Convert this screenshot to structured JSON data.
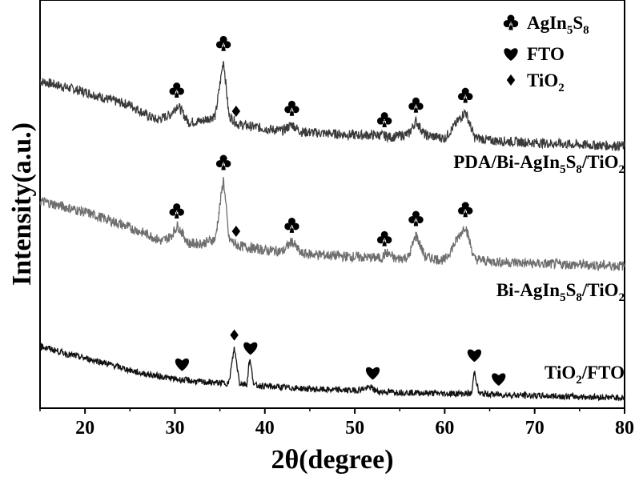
{
  "chart_data": {
    "type": "line",
    "title": "",
    "xlabel": "2θ(degree)",
    "ylabel": "Intensity(a.u.)",
    "xlim": [
      15,
      80
    ],
    "x_ticks": [
      20,
      30,
      40,
      50,
      60,
      70,
      80
    ],
    "y_ticks_shown": false,
    "grid": false,
    "legend": {
      "position": "top-right",
      "entries": [
        {
          "symbol": "club",
          "label": "AgIn5S8",
          "parts": [
            {
              "t": "AgIn"
            },
            {
              "t": "5",
              "sub": true
            },
            {
              "t": "S"
            },
            {
              "t": "8",
              "sub": true
            }
          ]
        },
        {
          "symbol": "heart",
          "label": "FTO",
          "parts": [
            {
              "t": "FTO"
            }
          ]
        },
        {
          "symbol": "diamond",
          "label": "TiO2",
          "parts": [
            {
              "t": "TiO"
            },
            {
              "t": "2",
              "sub": true
            }
          ]
        }
      ]
    },
    "series": [
      {
        "name": "PDA/Bi-AgIn5S8/TiO2",
        "name_parts": [
          {
            "t": "PDA/Bi-AgIn"
          },
          {
            "t": "5",
            "sub": true
          },
          {
            "t": "S"
          },
          {
            "t": "8",
            "sub": true
          },
          {
            "t": "/TiO"
          },
          {
            "t": "2",
            "sub": true
          }
        ],
        "color": "#3a3a3a",
        "x": [
          15,
          17,
          20,
          23,
          25,
          27,
          28,
          29.5,
          30.3,
          31.5,
          33,
          34.5,
          35.4,
          36,
          37,
          40,
          42,
          43,
          44,
          46,
          50,
          53,
          54,
          56,
          56.8,
          57.8,
          60,
          62.3,
          63.3,
          65,
          70,
          75,
          80
        ],
        "y": [
          62,
          58,
          52,
          44,
          40,
          30,
          26,
          31,
          40,
          24,
          25,
          30,
          82,
          30,
          22,
          18,
          16,
          22,
          15,
          14,
          12,
          12,
          10,
          13,
          25,
          12,
          9,
          34,
          10,
          7,
          5,
          3,
          2
        ],
        "peak_markers": [
          {
            "x": 30.2,
            "symbol": "club"
          },
          {
            "x": 35.4,
            "symbol": "club"
          },
          {
            "x": 36.8,
            "symbol": "diamond"
          },
          {
            "x": 43.0,
            "symbol": "club"
          },
          {
            "x": 53.3,
            "symbol": "club"
          },
          {
            "x": 56.8,
            "symbol": "club"
          },
          {
            "x": 62.3,
            "symbol": "club"
          }
        ]
      },
      {
        "name": "Bi-AgIn5S8/TiO2",
        "name_parts": [
          {
            "t": "Bi-AgIn"
          },
          {
            "t": "5",
            "sub": true
          },
          {
            "t": "S"
          },
          {
            "t": "8",
            "sub": true
          },
          {
            "t": "/TiO"
          },
          {
            "t": "2",
            "sub": true
          }
        ],
        "color": "#6e6e6e",
        "x": [
          15,
          17,
          20,
          23,
          25,
          27,
          28.5,
          29.5,
          30.3,
          31.5,
          33,
          34.5,
          35.4,
          36,
          37,
          40,
          42,
          43,
          44,
          46,
          50,
          53,
          53.5,
          54.5,
          56,
          56.8,
          57.8,
          60,
          62.3,
          63.3,
          65,
          70,
          75,
          80
        ],
        "y": [
          60,
          56,
          50,
          42,
          36,
          30,
          24,
          28,
          38,
          22,
          22,
          26,
          80,
          26,
          20,
          16,
          15,
          24,
          13,
          12,
          10,
          9,
          14,
          8,
          10,
          30,
          10,
          7,
          38,
          8,
          6,
          4,
          3,
          2
        ],
        "peak_markers": [
          {
            "x": 30.2,
            "symbol": "club"
          },
          {
            "x": 35.4,
            "symbol": "club"
          },
          {
            "x": 36.8,
            "symbol": "diamond"
          },
          {
            "x": 43.0,
            "symbol": "club"
          },
          {
            "x": 53.3,
            "symbol": "club"
          },
          {
            "x": 56.8,
            "symbol": "club"
          },
          {
            "x": 62.3,
            "symbol": "club"
          }
        ]
      },
      {
        "name": "TiO2/FTO",
        "name_parts": [
          {
            "t": "TiO"
          },
          {
            "t": "2",
            "sub": true
          },
          {
            "t": "/FTO"
          }
        ],
        "color": "#111111",
        "x": [
          15,
          18,
          22,
          26,
          30,
          33,
          36,
          36.6,
          37.2,
          38,
          38.3,
          38.8,
          42,
          46,
          50,
          51.8,
          52.5,
          56,
          60,
          63,
          63.3,
          63.8,
          66,
          70,
          75,
          80
        ],
        "y": [
          50,
          42,
          34,
          24,
          18,
          15,
          14,
          48,
          14,
          13,
          38,
          12,
          10,
          8,
          7,
          10,
          6,
          5,
          4,
          4,
          26,
          4,
          3,
          2,
          1,
          0
        ],
        "peak_markers": [
          {
            "x": 30.8,
            "symbol": "heart"
          },
          {
            "x": 36.6,
            "symbol": "diamond"
          },
          {
            "x": 38.4,
            "symbol": "heart"
          },
          {
            "x": 52.0,
            "symbol": "heart"
          },
          {
            "x": 63.3,
            "symbol": "heart"
          },
          {
            "x": 66.0,
            "symbol": "heart"
          }
        ]
      }
    ]
  }
}
